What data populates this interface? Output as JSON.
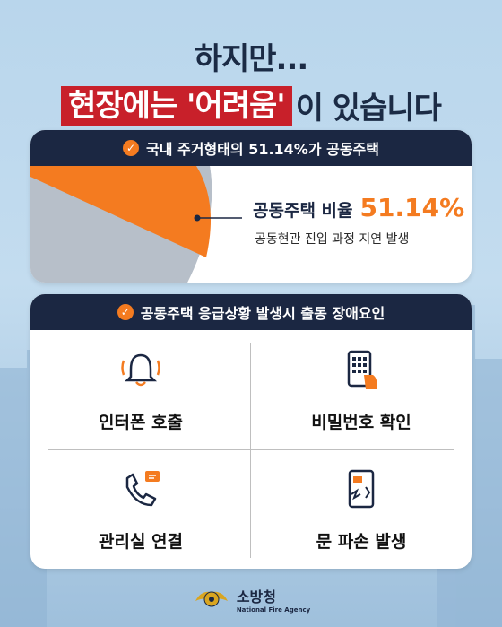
{
  "title": {
    "line1": "하지만...",
    "highlight": "현장에는 '어려움'",
    "rest": "이 있습니다"
  },
  "card1": {
    "header": "국내 주거형태의 51.14%가 공동주택",
    "stat_label": "공동주택 비율",
    "stat_value": "51.14%",
    "stat_sub": "공동현관 진입 과정 지연 발생"
  },
  "card2": {
    "header": "공동주택 응급상황 발생시 출동 장애요인",
    "items": [
      {
        "label": "인터폰 호출",
        "icon": "bell-icon"
      },
      {
        "label": "비밀번호 확인",
        "icon": "keypad-icon"
      },
      {
        "label": "관리실 연결",
        "icon": "phone-icon"
      },
      {
        "label": "문 파손 발생",
        "icon": "broken-door-icon"
      }
    ]
  },
  "logo": {
    "name": "소방청",
    "sub": "National Fire Agency"
  },
  "colors": {
    "navy": "#1b2742",
    "orange": "#f47b20",
    "red": "#c8202a"
  }
}
